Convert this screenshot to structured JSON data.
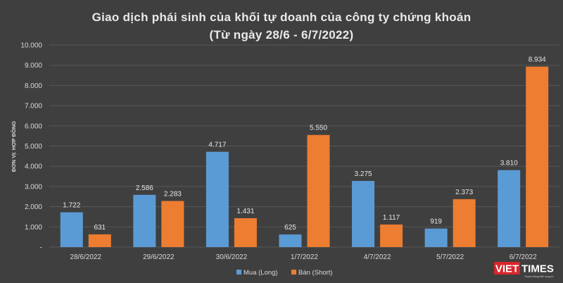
{
  "chart_data": {
    "type": "bar",
    "title": "Giao dịch phái sinh của khối tự doanh của công ty chứng khoán",
    "subtitle": "(Từ ngày 28/6 - 6/7/2022)",
    "ylabel": "ĐƠN VỊ: HỢP ĐỒNG",
    "xlabel": "",
    "ylim": [
      0,
      10000
    ],
    "y_ticks": [
      "-",
      "1.000",
      "2.000",
      "3.000",
      "4.000",
      "5.000",
      "6.000",
      "7.000",
      "8.000",
      "9.000",
      "10.000"
    ],
    "categories": [
      "28/6/2022",
      "29/6/2022",
      "30/6/2022",
      "1/7/2022",
      "4/7/2022",
      "5/7/2022",
      "6/7/2022"
    ],
    "series": [
      {
        "name": "Mua (Long)",
        "color": "#5b9bd5",
        "values": [
          1722,
          2586,
          4717,
          625,
          3275,
          919,
          3810
        ],
        "labels": [
          "1.722",
          "2.586",
          "4.717",
          "625",
          "3.275",
          "919",
          "3.810"
        ]
      },
      {
        "name": "Bán (Short)",
        "color": "#ed7d31",
        "values": [
          631,
          2283,
          1431,
          5550,
          1117,
          2373,
          8934
        ],
        "labels": [
          "631",
          "2.283",
          "1.431",
          "5.550",
          "1.117",
          "2.373",
          "8.934"
        ]
      }
    ],
    "grid": true,
    "legend_position": "bottom-center"
  },
  "branding": {
    "logo_viet": "VIET",
    "logo_times": "TIMES",
    "logo_tagline": "Truyền thông triển vọng số"
  },
  "colors": {
    "background": "#3f3f3f",
    "logo_red": "#d7262c"
  }
}
